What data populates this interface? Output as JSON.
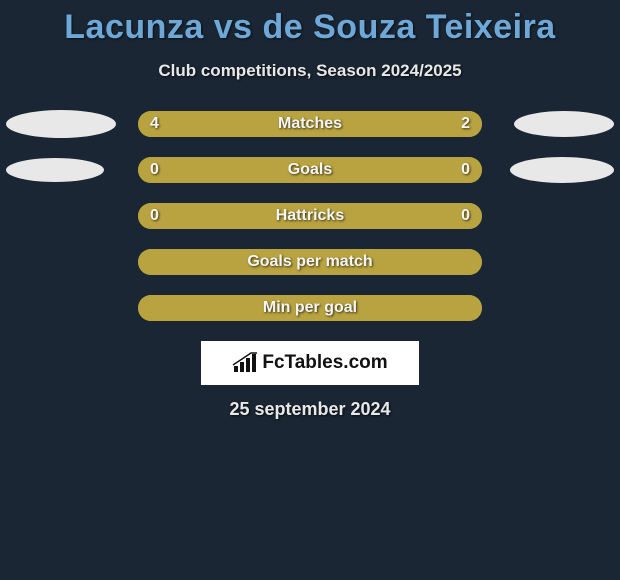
{
  "title": "Lacunza vs de Souza Teixeira",
  "subtitle": "Club competitions, Season 2024/2025",
  "date": "25 september 2024",
  "logo_text": "FcTables.com",
  "colors": {
    "background": "#1a2633",
    "title": "#6ea8d8",
    "text": "#e8e8e8",
    "track": "#a59028",
    "fill_left": "#b8a340",
    "fill_right": "#b8a340",
    "ellipse": "#e8e8e8",
    "logo_bg": "#ffffff"
  },
  "ellipse_sizes": {
    "row0": {
      "left_w": 110,
      "left_h": 28,
      "right_w": 100,
      "right_h": 26
    },
    "row1": {
      "left_w": 98,
      "left_h": 24,
      "right_w": 104,
      "right_h": 26
    }
  },
  "rows": [
    {
      "label": "Matches",
      "left_val": "4",
      "right_val": "2",
      "left_pct": 66.7,
      "right_pct": 33.3,
      "show_ellipses": true,
      "show_vals": true
    },
    {
      "label": "Goals",
      "left_val": "0",
      "right_val": "0",
      "left_pct": 50,
      "right_pct": 50,
      "show_ellipses": true,
      "show_vals": true
    },
    {
      "label": "Hattricks",
      "left_val": "0",
      "right_val": "0",
      "left_pct": 50,
      "right_pct": 50,
      "show_ellipses": false,
      "show_vals": true
    },
    {
      "label": "Goals per match",
      "left_val": "",
      "right_val": "",
      "left_pct": 50,
      "right_pct": 50,
      "show_ellipses": false,
      "show_vals": false
    },
    {
      "label": "Min per goal",
      "left_val": "",
      "right_val": "",
      "left_pct": 50,
      "right_pct": 50,
      "show_ellipses": false,
      "show_vals": false
    }
  ]
}
